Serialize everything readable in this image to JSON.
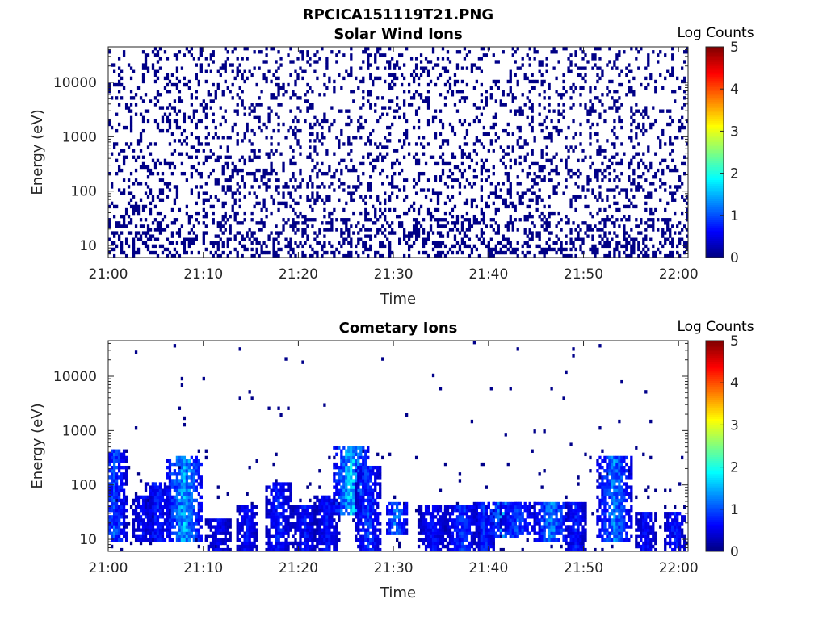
{
  "figure": {
    "title": "RPCICA151119T21.PNG"
  },
  "chart_data": [
    {
      "type": "heatmap",
      "title": "Solar Wind Ions",
      "xlabel": "Time",
      "ylabel": "Energy (eV)",
      "x_ticks": [
        "21:00",
        "21:10",
        "21:20",
        "21:30",
        "21:40",
        "21:50",
        "22:00"
      ],
      "x_range": [
        "21:00",
        "22:01"
      ],
      "y_scale": "log",
      "y_ticks": [
        10,
        100,
        1000,
        10000
      ],
      "y_tick_labels": [
        "10",
        "100",
        "1000",
        "10000"
      ],
      "y_range": [
        6,
        45000
      ],
      "colorbar": {
        "label": "Log Counts",
        "range": [
          0,
          5
        ],
        "ticks": [
          "0",
          "1",
          "2",
          "3",
          "4",
          "5"
        ],
        "colormap": "jet"
      },
      "description_values": {
        "dominant_level": 0,
        "pattern": "sparse single counts spread across all energies and all times"
      }
    },
    {
      "type": "heatmap",
      "title": "Cometary Ions",
      "xlabel": "Time",
      "ylabel": "Energy (eV)",
      "x_ticks": [
        "21:00",
        "21:10",
        "21:20",
        "21:30",
        "21:40",
        "21:50",
        "22:00"
      ],
      "x_range": [
        "21:00",
        "22:01"
      ],
      "y_scale": "log",
      "y_ticks": [
        10,
        100,
        1000,
        10000
      ],
      "y_tick_labels": [
        "10",
        "100",
        "1000",
        "10000"
      ],
      "y_range": [
        6,
        45000
      ],
      "colorbar": {
        "label": "Log Counts",
        "range": [
          0,
          5
        ],
        "ticks": [
          "0",
          "1",
          "2",
          "3",
          "4",
          "5"
        ],
        "colormap": "jet"
      },
      "bursts": [
        {
          "t_min": 0.5,
          "e_lo": 8,
          "e_hi": 400,
          "peak_log": 1.3
        },
        {
          "t_min": 3.5,
          "e_lo": 8,
          "e_hi": 60,
          "peak_log": 0.9
        },
        {
          "t_min": 5.0,
          "e_lo": 8,
          "e_hi": 110,
          "peak_log": 1.0
        },
        {
          "t_min": 8.0,
          "e_lo": 8,
          "e_hi": 300,
          "peak_log": 1.9
        },
        {
          "t_min": 11.5,
          "e_lo": 6,
          "e_hi": 22,
          "peak_log": 0.8
        },
        {
          "t_min": 14.5,
          "e_lo": 6,
          "e_hi": 40,
          "peak_log": 0.9
        },
        {
          "t_min": 17.8,
          "e_lo": 6,
          "e_hi": 110,
          "peak_log": 1.0
        },
        {
          "t_min": 20.5,
          "e_lo": 6,
          "e_hi": 40,
          "peak_log": 0.9
        },
        {
          "t_min": 23.0,
          "e_lo": 6,
          "e_hi": 60,
          "peak_log": 0.9
        },
        {
          "t_min": 25.3,
          "e_lo": 25,
          "e_hi": 500,
          "peak_log": 2.0
        },
        {
          "t_min": 27.3,
          "e_lo": 6,
          "e_hi": 200,
          "peak_log": 1.2
        },
        {
          "t_min": 30.2,
          "e_lo": 12,
          "e_hi": 45,
          "peak_log": 1.6
        },
        {
          "t_min": 34.0,
          "e_lo": 6,
          "e_hi": 40,
          "peak_log": 0.9
        },
        {
          "t_min": 37.0,
          "e_lo": 6,
          "e_hi": 40,
          "peak_log": 1.1
        },
        {
          "t_min": 39.5,
          "e_lo": 6,
          "e_hi": 45,
          "peak_log": 1.1
        },
        {
          "t_min": 41.5,
          "e_lo": 10,
          "e_hi": 45,
          "peak_log": 1.7
        },
        {
          "t_min": 43.0,
          "e_lo": 12,
          "e_hi": 45,
          "peak_log": 1.3
        },
        {
          "t_min": 46.5,
          "e_lo": 8,
          "e_hi": 45,
          "peak_log": 1.6
        },
        {
          "t_min": 49.0,
          "e_lo": 6,
          "e_hi": 45,
          "peak_log": 1.0
        },
        {
          "t_min": 53.2,
          "e_lo": 8,
          "e_hi": 300,
          "peak_log": 1.6
        },
        {
          "t_min": 56.5,
          "e_lo": 6,
          "e_hi": 30,
          "peak_log": 0.9
        },
        {
          "t_min": 59.5,
          "e_lo": 6,
          "e_hi": 30,
          "peak_log": 1.0
        }
      ]
    }
  ]
}
